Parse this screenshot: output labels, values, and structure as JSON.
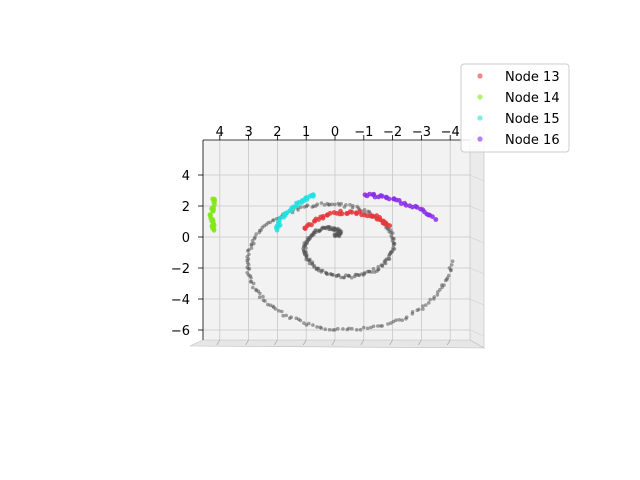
{
  "chart_data": {
    "type": "scatter",
    "projection": "3d-view-from-above",
    "title": "",
    "xlabel": "",
    "ylabel": "",
    "x_ticks": [
      "4",
      "3",
      "2",
      "1",
      "0",
      "−1",
      "−2",
      "−3",
      "−4"
    ],
    "y_ticks": [
      "4",
      "2",
      "0",
      "−2",
      "−4",
      "−6"
    ],
    "xlim": [
      4.5,
      -4.5
    ],
    "ylim": [
      -7.0,
      6.0
    ],
    "grid": true,
    "legend_position": "top-right",
    "background_points": {
      "color": "#555555",
      "description": "Archimedean spiral from the origin outward, about 2 turns",
      "t_range": [
        0,
        12.6
      ],
      "x": [
        0.0,
        -1.4,
        -1.9,
        -1.2,
        0.0,
        1.5,
        2.0,
        1.5,
        0.0,
        -2.0,
        -3.9,
        -4.1,
        -2.8,
        0.0,
        2.6,
        4.2,
        3.8,
        2.2,
        0.0
      ],
      "y": [
        0.0,
        -0.4,
        -1.6,
        -2.8,
        -2.8,
        -2.0,
        0.1,
        1.4,
        1.5,
        1.1,
        1.0,
        -2.2,
        -4.8,
        -6.3,
        -5.0,
        -1.6,
        2.0,
        4.0,
        5.0
      ]
    },
    "series": [
      {
        "name": "Node 13",
        "color": "#e8363a",
        "x": [
          1.05,
          0.7,
          0.3,
          -0.2,
          -0.7,
          -1.2,
          -1.6,
          -1.9
        ],
        "y": [
          0.4,
          0.9,
          1.3,
          1.45,
          1.45,
          1.3,
          1.0,
          0.6
        ]
      },
      {
        "name": "Node 14",
        "color": "#80e818",
        "x": [
          4.2,
          4.25,
          4.3,
          4.25,
          4.2
        ],
        "y": [
          2.3,
          1.8,
          1.3,
          0.8,
          0.3
        ]
      },
      {
        "name": "Node 15",
        "color": "#20e0e0",
        "x": [
          2.05,
          1.9,
          1.65,
          1.35,
          1.05,
          0.75
        ],
        "y": [
          0.3,
          0.9,
          1.5,
          1.95,
          2.3,
          2.6
        ]
      },
      {
        "name": "Node 16",
        "color": "#8a2be8",
        "x": [
          -1.05,
          -1.5,
          -2.0,
          -2.5,
          -3.0,
          -3.5
        ],
        "y": [
          2.6,
          2.5,
          2.3,
          2.0,
          1.6,
          1.0
        ]
      }
    ]
  }
}
